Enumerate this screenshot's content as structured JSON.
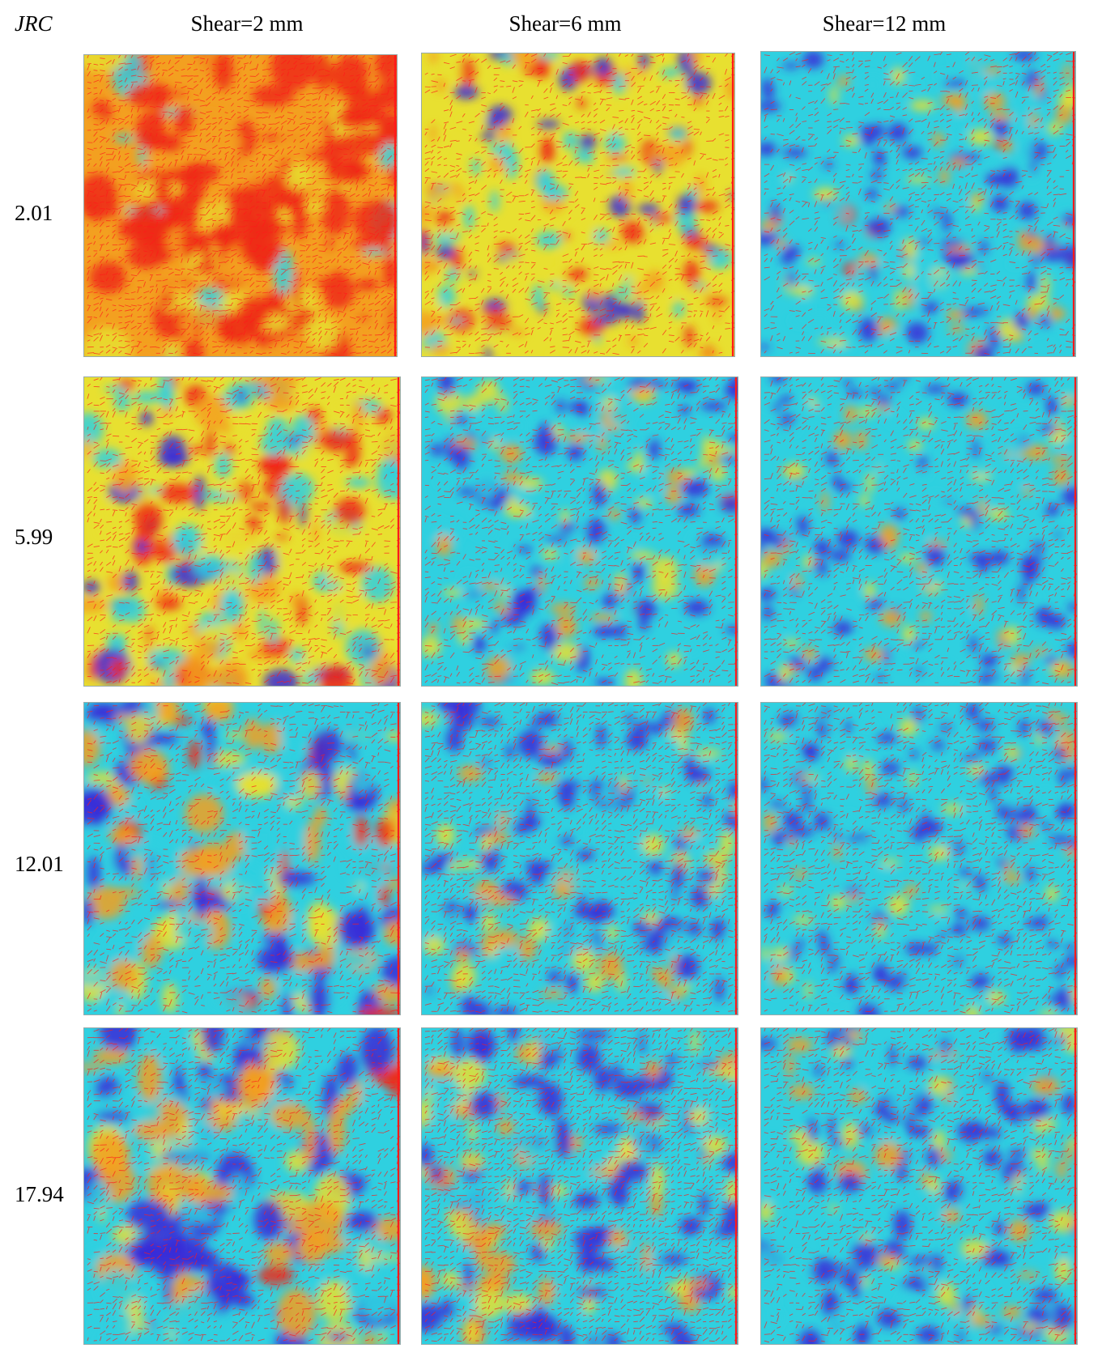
{
  "figure": {
    "row_axis_label": "JRC",
    "columns": [
      {
        "label": "Shear=2 mm"
      },
      {
        "label": "Shear=6 mm"
      },
      {
        "label": "Shear=12 mm"
      }
    ],
    "rows": [
      {
        "label": "2.01"
      },
      {
        "label": "5.99"
      },
      {
        "label": "12.01"
      },
      {
        "label": "17.94"
      }
    ],
    "colormap": {
      "low": "#3a2ad8",
      "mid_low": "#2fd0e0",
      "mid": "#e8e030",
      "mid_high": "#f3a020",
      "high": "#ee2b14"
    },
    "vector_color": "#ff1a1a"
  }
}
